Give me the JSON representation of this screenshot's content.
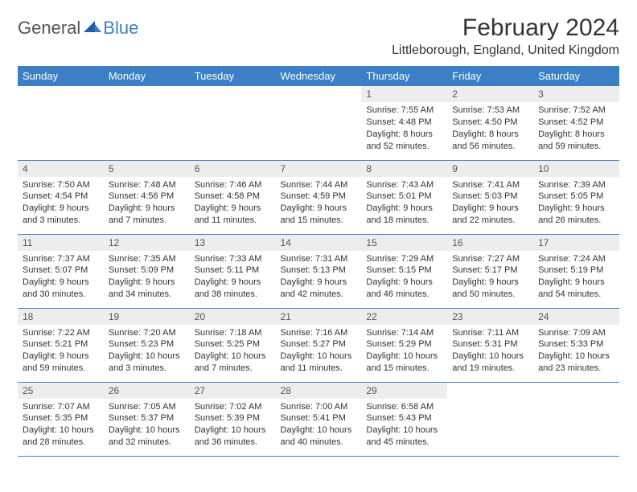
{
  "logo": {
    "text1": "General",
    "text2": "Blue"
  },
  "title": "February 2024",
  "location": "Littleborough, England, United Kingdom",
  "colors": {
    "header_bg": "#3b7fc4",
    "header_text": "#ffffff",
    "daynum_bg": "#ededed",
    "border": "#3b7fc4",
    "logo_gray": "#555555",
    "logo_blue": "#3b7fc4"
  },
  "weekdays": [
    "Sunday",
    "Monday",
    "Tuesday",
    "Wednesday",
    "Thursday",
    "Friday",
    "Saturday"
  ],
  "weeks": [
    [
      null,
      null,
      null,
      null,
      {
        "n": "1",
        "sr": "7:55 AM",
        "ss": "4:48 PM",
        "dl": "8 hours and 52 minutes."
      },
      {
        "n": "2",
        "sr": "7:53 AM",
        "ss": "4:50 PM",
        "dl": "8 hours and 56 minutes."
      },
      {
        "n": "3",
        "sr": "7:52 AM",
        "ss": "4:52 PM",
        "dl": "8 hours and 59 minutes."
      }
    ],
    [
      {
        "n": "4",
        "sr": "7:50 AM",
        "ss": "4:54 PM",
        "dl": "9 hours and 3 minutes."
      },
      {
        "n": "5",
        "sr": "7:48 AM",
        "ss": "4:56 PM",
        "dl": "9 hours and 7 minutes."
      },
      {
        "n": "6",
        "sr": "7:46 AM",
        "ss": "4:58 PM",
        "dl": "9 hours and 11 minutes."
      },
      {
        "n": "7",
        "sr": "7:44 AM",
        "ss": "4:59 PM",
        "dl": "9 hours and 15 minutes."
      },
      {
        "n": "8",
        "sr": "7:43 AM",
        "ss": "5:01 PM",
        "dl": "9 hours and 18 minutes."
      },
      {
        "n": "9",
        "sr": "7:41 AM",
        "ss": "5:03 PM",
        "dl": "9 hours and 22 minutes."
      },
      {
        "n": "10",
        "sr": "7:39 AM",
        "ss": "5:05 PM",
        "dl": "9 hours and 26 minutes."
      }
    ],
    [
      {
        "n": "11",
        "sr": "7:37 AM",
        "ss": "5:07 PM",
        "dl": "9 hours and 30 minutes."
      },
      {
        "n": "12",
        "sr": "7:35 AM",
        "ss": "5:09 PM",
        "dl": "9 hours and 34 minutes."
      },
      {
        "n": "13",
        "sr": "7:33 AM",
        "ss": "5:11 PM",
        "dl": "9 hours and 38 minutes."
      },
      {
        "n": "14",
        "sr": "7:31 AM",
        "ss": "5:13 PM",
        "dl": "9 hours and 42 minutes."
      },
      {
        "n": "15",
        "sr": "7:29 AM",
        "ss": "5:15 PM",
        "dl": "9 hours and 46 minutes."
      },
      {
        "n": "16",
        "sr": "7:27 AM",
        "ss": "5:17 PM",
        "dl": "9 hours and 50 minutes."
      },
      {
        "n": "17",
        "sr": "7:24 AM",
        "ss": "5:19 PM",
        "dl": "9 hours and 54 minutes."
      }
    ],
    [
      {
        "n": "18",
        "sr": "7:22 AM",
        "ss": "5:21 PM",
        "dl": "9 hours and 59 minutes."
      },
      {
        "n": "19",
        "sr": "7:20 AM",
        "ss": "5:23 PM",
        "dl": "10 hours and 3 minutes."
      },
      {
        "n": "20",
        "sr": "7:18 AM",
        "ss": "5:25 PM",
        "dl": "10 hours and 7 minutes."
      },
      {
        "n": "21",
        "sr": "7:16 AM",
        "ss": "5:27 PM",
        "dl": "10 hours and 11 minutes."
      },
      {
        "n": "22",
        "sr": "7:14 AM",
        "ss": "5:29 PM",
        "dl": "10 hours and 15 minutes."
      },
      {
        "n": "23",
        "sr": "7:11 AM",
        "ss": "5:31 PM",
        "dl": "10 hours and 19 minutes."
      },
      {
        "n": "24",
        "sr": "7:09 AM",
        "ss": "5:33 PM",
        "dl": "10 hours and 23 minutes."
      }
    ],
    [
      {
        "n": "25",
        "sr": "7:07 AM",
        "ss": "5:35 PM",
        "dl": "10 hours and 28 minutes."
      },
      {
        "n": "26",
        "sr": "7:05 AM",
        "ss": "5:37 PM",
        "dl": "10 hours and 32 minutes."
      },
      {
        "n": "27",
        "sr": "7:02 AM",
        "ss": "5:39 PM",
        "dl": "10 hours and 36 minutes."
      },
      {
        "n": "28",
        "sr": "7:00 AM",
        "ss": "5:41 PM",
        "dl": "10 hours and 40 minutes."
      },
      {
        "n": "29",
        "sr": "6:58 AM",
        "ss": "5:43 PM",
        "dl": "10 hours and 45 minutes."
      },
      null,
      null
    ]
  ],
  "labels": {
    "sunrise": "Sunrise: ",
    "sunset": "Sunset: ",
    "daylight": "Daylight: "
  }
}
